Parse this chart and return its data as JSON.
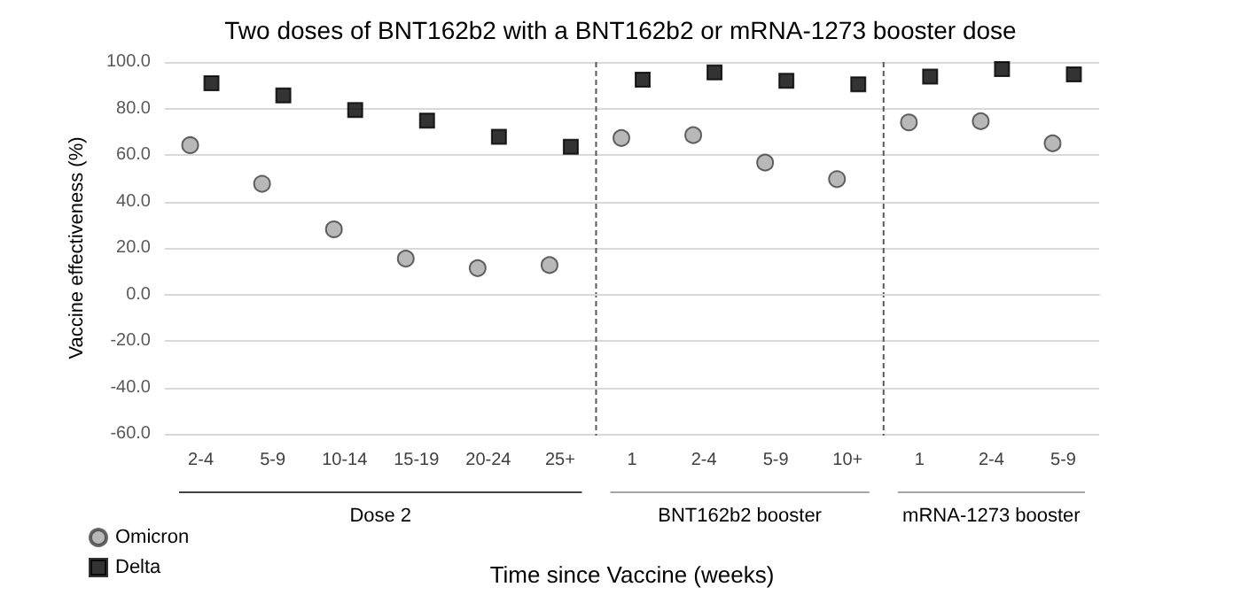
{
  "chart_data": {
    "type": "scatter",
    "title": "Two doses of BNT162b2 with a BNT162b2 or mRNA-1273 booster dose",
    "xlabel": "Time since Vaccine (weeks)",
    "ylabel": "Vaccine effectiveness (%)",
    "categories": [
      "2-4",
      "5-9",
      "10-14",
      "15-19",
      "20-24",
      "25+",
      "1",
      "2-4",
      "5-9",
      "10+",
      "1",
      "2-4",
      "5-9"
    ],
    "series": [
      {
        "name": "Omicron",
        "color": "#a6a6a6",
        "marker": "circle",
        "values": [
          64.2,
          47.6,
          28,
          15.4,
          11.3,
          12.6,
          67.3,
          68.5,
          56.7,
          49.6,
          74,
          74.5,
          65
        ]
      },
      {
        "name": "Delta",
        "color": "#000000",
        "marker": "square",
        "values": [
          90.9,
          85.6,
          79.3,
          74.8,
          67.8,
          63.5,
          92.4,
          95.5,
          91.9,
          90.4,
          93.7,
          97,
          94.7
        ]
      }
    ],
    "ylim": [
      -60,
      100
    ],
    "yticks": [
      {
        "value": -60,
        "label": "-60.0"
      },
      {
        "value": -40,
        "label": "-40.0"
      },
      {
        "value": -20,
        "label": "-20.0"
      },
      {
        "value": 0,
        "label": "0.0"
      },
      {
        "value": 20,
        "label": "20.0"
      },
      {
        "value": 40,
        "label": "40.0"
      },
      {
        "value": 60,
        "label": "60.0"
      },
      {
        "value": 80,
        "label": "80.0"
      },
      {
        "value": 100,
        "label": "100.0"
      }
    ],
    "grid": "y",
    "legend": "bottom left",
    "annotations": [
      "Dose 2",
      "BNT162b2 booster",
      "mRNA-1273 booster"
    ]
  }
}
